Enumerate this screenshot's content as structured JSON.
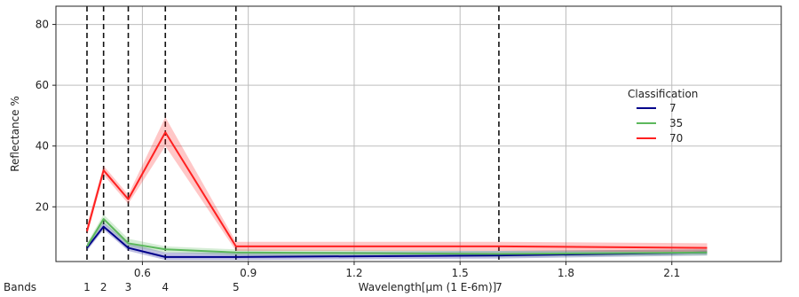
{
  "chart_data": {
    "type": "line",
    "title": "",
    "xlabel": "Wavelength[µm (1 E-6m)]",
    "ylabel": "Reflectance %",
    "xlim": [
      0.355,
      2.41
    ],
    "ylim": [
      2,
      86
    ],
    "xticks": [
      0.6,
      0.9,
      1.2,
      1.5,
      1.8,
      2.1
    ],
    "xtick_labels": [
      "0.6",
      "0.9",
      "1.2",
      "1.5",
      "1.8",
      "2.1"
    ],
    "yticks": [
      20,
      40,
      60,
      80
    ],
    "ytick_labels": [
      "20",
      "40",
      "60",
      "80"
    ],
    "grid": true,
    "band_axis_label": "Bands",
    "bands": [
      {
        "label": "1",
        "x": 0.443
      },
      {
        "label": "2",
        "x": 0.49
      },
      {
        "label": "3",
        "x": 0.56
      },
      {
        "label": "4",
        "x": 0.665
      },
      {
        "label": "5",
        "x": 0.865
      },
      {
        "label": "7",
        "x": 1.61
      }
    ],
    "legend": {
      "title": "Classification",
      "placement": "center-right"
    },
    "x": [
      0.443,
      0.49,
      0.56,
      0.665,
      0.865,
      1.61,
      2.2
    ],
    "series": [
      {
        "name": "7",
        "color": "#00008b",
        "values": [
          6.5,
          13.5,
          6.5,
          3.5,
          3.5,
          4.0,
          5.0
        ],
        "lower": [
          5.5,
          12.5,
          5.5,
          2.5,
          2.5,
          3.0,
          4.0
        ],
        "upper": [
          8.0,
          15.0,
          8.0,
          5.0,
          5.0,
          5.5,
          6.0
        ]
      },
      {
        "name": "35",
        "color": "#5cb85c",
        "values": [
          7.0,
          16.0,
          8.0,
          6.0,
          5.0,
          4.5,
          5.0
        ],
        "lower": [
          6.0,
          14.5,
          7.0,
          5.0,
          4.0,
          3.5,
          4.0
        ],
        "upper": [
          8.0,
          17.5,
          9.5,
          7.0,
          6.0,
          5.5,
          6.0
        ]
      },
      {
        "name": "70",
        "color": "#ff2020",
        "values": [
          12.0,
          32.0,
          22.5,
          44.5,
          7.0,
          7.0,
          6.5
        ],
        "lower": [
          10.5,
          30.5,
          21.0,
          40.0,
          5.5,
          5.5,
          5.0
        ],
        "upper": [
          14.0,
          33.5,
          24.0,
          49.5,
          8.5,
          8.5,
          8.0
        ]
      }
    ]
  }
}
